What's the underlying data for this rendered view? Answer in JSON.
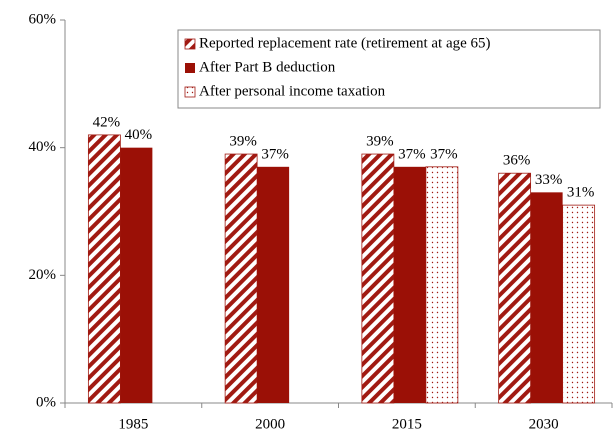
{
  "chart_data": {
    "type": "bar",
    "categories": [
      "1985",
      "2000",
      "2015",
      "2030"
    ],
    "series": [
      {
        "name": "Reported replacement rate (retirement at age 65)",
        "color": "#a11a12",
        "pattern": "hatch",
        "values": [
          42,
          39,
          39,
          36
        ],
        "value_labels": [
          "42%",
          "39%",
          "39%",
          "36%"
        ]
      },
      {
        "name": "After Part B deduction",
        "color": "#9b1006",
        "pattern": "solid",
        "values": [
          40,
          37,
          37,
          33
        ],
        "value_labels": [
          "40%",
          "37%",
          "37%",
          "33%"
        ]
      },
      {
        "name": "After personal income taxation",
        "color": "#a11a12",
        "pattern": "dots",
        "values": [
          null,
          null,
          37,
          31
        ],
        "value_labels": [
          null,
          null,
          "37%",
          "31%"
        ]
      }
    ],
    "ylim": [
      0,
      60
    ],
    "yticks": [
      {
        "value": 0,
        "label": "0%"
      },
      {
        "value": 20,
        "label": "20%"
      },
      {
        "value": 40,
        "label": "40%"
      },
      {
        "value": 60,
        "label": "60%"
      }
    ],
    "legend": "top-right"
  }
}
